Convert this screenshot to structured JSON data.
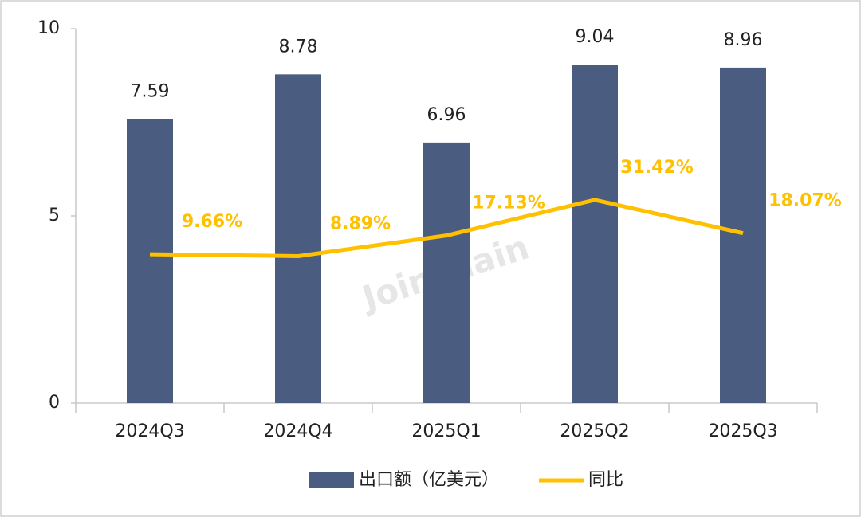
{
  "chart_data": {
    "type": "bar",
    "categories": [
      "2024Q3",
      "2024Q4",
      "2025Q1",
      "2025Q2",
      "2025Q3"
    ],
    "series": [
      {
        "name": "出口额（亿美元）",
        "type": "bar",
        "color": "#4a5d80",
        "values": [
          7.59,
          8.78,
          6.96,
          9.04,
          8.96
        ]
      },
      {
        "name": "同比",
        "type": "line",
        "axis": "y2",
        "color": "#ffc000",
        "values": [
          9.66,
          8.89,
          17.13,
          31.42,
          18.07
        ],
        "value_labels": [
          "9.66%",
          "8.89%",
          "17.13%",
          "31.42%",
          "18.07%"
        ]
      }
    ],
    "ylim": [
      0,
      10
    ],
    "yticks": [
      0,
      5,
      10
    ],
    "y2lim": [
      -50,
      100
    ],
    "legend": "bottom",
    "watermark": "Joinchain"
  }
}
